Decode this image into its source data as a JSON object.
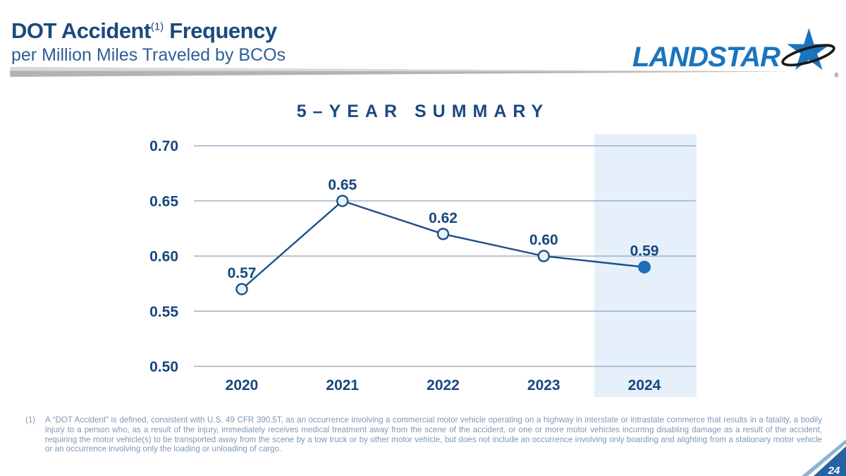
{
  "header": {
    "title_part1": "DOT Accident",
    "title_sup": "(1)",
    "title_part2": " Frequency",
    "subtitle": "per Million Miles Traveled by BCOs",
    "logo_text": "LANDSTAR",
    "logo_registered": "®"
  },
  "chart_data": {
    "type": "line",
    "title": "5–YEAR SUMMARY",
    "categories": [
      "2020",
      "2021",
      "2022",
      "2023",
      "2024"
    ],
    "values": [
      0.57,
      0.65,
      0.62,
      0.6,
      0.59
    ],
    "data_labels": [
      "0.57",
      "0.65",
      "0.62",
      "0.60",
      "0.59"
    ],
    "y_ticks": [
      "0.70",
      "0.65",
      "0.60",
      "0.55",
      "0.50"
    ],
    "ylim": [
      0.5,
      0.7
    ],
    "xlabel": "",
    "ylabel": "",
    "grid": "horizontal",
    "legend": "none",
    "highlight_category": "2024",
    "colors": {
      "line": "#1D4F87",
      "gridline": "#9BB2C7",
      "band": "#E6F0FA",
      "marker_fill_open": "#EAF2FA",
      "marker_fill_final": "#1B6FB8",
      "label": "#16477E"
    }
  },
  "footnote": {
    "marker": "(1)",
    "text": "A “DOT Accident” is defined, consistent with U.S. 49 CFR 390.5T, as an occurrence involving a commercial motor vehicle operating on a highway in interstate or intrastate commerce that results in a fatality, a bodily injury to a person who, as a result of the injury, immediately receives medical treatment away from the scene of the accident, or one or more motor vehicles incurring disabling damage as a result of the accident, requiring the motor vehicle(s) to be transported away from the scene by a tow truck or by other motor vehicle, but does not include an occurrence involving only boarding and alighting from a stationary motor vehicle or an occurrence involving only the loading or unloading of cargo."
  },
  "page_number": "24"
}
